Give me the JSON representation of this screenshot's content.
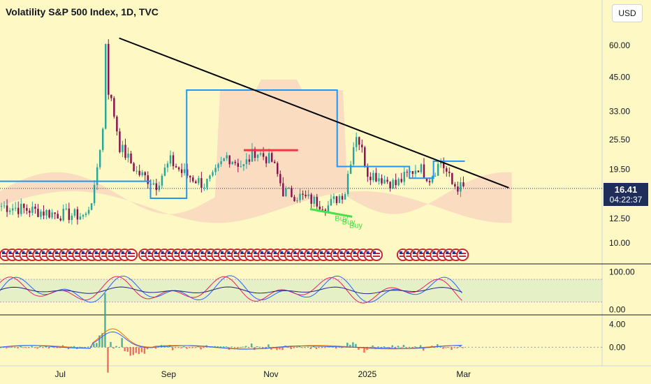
{
  "title": "Volatility S&P 500 Index, 1D, TVC",
  "currency": "USD",
  "price_tag": {
    "value": "16.41",
    "countdown": "04:22:37"
  },
  "chart_data": [
    {
      "type": "candlestick",
      "scale": "log",
      "title": "Volatility S&P 500 Index, 1D, TVC",
      "yticks": [
        {
          "label": "60.00",
          "value": 60
        },
        {
          "label": "45.00",
          "value": 45
        },
        {
          "label": "33.00",
          "value": 33
        },
        {
          "label": "25.50",
          "value": 25.5
        },
        {
          "label": "19.50",
          "value": 19.5
        },
        {
          "label": "12.50",
          "value": 12.5
        },
        {
          "label": "10.00",
          "value": 10
        }
      ],
      "ylim": [
        8.6,
        72
      ],
      "xticks": [
        {
          "label": "Jul",
          "pos": 0.1
        },
        {
          "label": "Sep",
          "pos": 0.28
        },
        {
          "label": "Nov",
          "pos": 0.45
        },
        {
          "label": "2025",
          "pos": 0.61
        },
        {
          "label": "Mar",
          "pos": 0.77
        }
      ],
      "trendline": [
        {
          "x": 0.198,
          "y": 64
        },
        {
          "x": 0.845,
          "y": 16.5
        }
      ],
      "last_price": 16.41,
      "annotations": [
        "Buy",
        "Buy",
        "Buy"
      ],
      "colors": {
        "up": "#26a69a",
        "down": "#880e4f",
        "trendline": "#000000",
        "resistance": "#f23645",
        "support": "#45e24b",
        "step": "#2196f3"
      }
    },
    {
      "type": "line",
      "name": "oscillator",
      "yticks": [
        {
          "label": "100.00",
          "value": 100
        },
        {
          "label": "0.00",
          "value": 0
        }
      ],
      "ylim": [
        -5,
        110
      ]
    },
    {
      "type": "histogram",
      "name": "macd",
      "yticks": [
        {
          "label": "4.00",
          "value": 4
        },
        {
          "label": "0.00",
          "value": 0
        }
      ],
      "ylim": [
        -2.5,
        5
      ]
    }
  ]
}
